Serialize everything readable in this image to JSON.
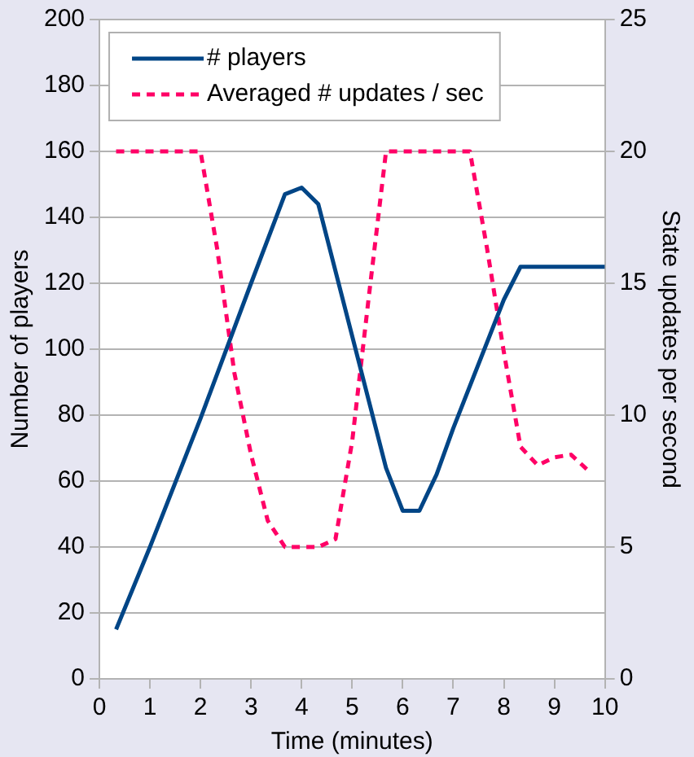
{
  "chart_data": {
    "type": "line",
    "xlabel": "Time (minutes)",
    "ylabel": "Number of players",
    "y2label": "State updates per second",
    "xlim": [
      0,
      10
    ],
    "xticks": [
      0,
      1,
      2,
      3,
      4,
      5,
      6,
      7,
      8,
      9,
      10
    ],
    "ylim": [
      0,
      200
    ],
    "yticks": [
      0,
      20,
      40,
      60,
      80,
      100,
      120,
      140,
      160,
      180,
      200
    ],
    "y2lim": [
      0,
      25
    ],
    "y2ticks": [
      0,
      5,
      10,
      15,
      20,
      25
    ],
    "grid": "y",
    "legend": "top left",
    "marker": "none",
    "series": [
      {
        "name": "# players",
        "color": "#004586",
        "line_style": "solid",
        "x": [
          0.33,
          1,
          2,
          3,
          3.67,
          4,
          4.33,
          5.67,
          6,
          6.33,
          6.67,
          7,
          8,
          8.33,
          10
        ],
        "values": [
          15,
          40,
          79,
          120,
          147,
          149,
          144,
          64,
          51,
          51,
          62,
          76,
          115,
          125,
          125
        ]
      },
      {
        "name": "Averaged # updates / sec",
        "color": "#ff0066",
        "line_style": "dashed",
        "axis": "y2",
        "x": [
          0.33,
          2,
          2.33,
          2.67,
          3,
          3.33,
          3.67,
          4,
          4.33,
          4.67,
          5,
          5.33,
          5.67,
          7.33,
          7.67,
          8,
          8.33,
          8.67,
          9,
          9.33,
          9.67
        ],
        "values": [
          20,
          20,
          16.3,
          11.6,
          8.5,
          6,
          5,
          5,
          5,
          5.3,
          9,
          14.5,
          20,
          20,
          16.3,
          12.4,
          8.8,
          8.1,
          8.4,
          8.5,
          7.9
        ]
      }
    ]
  }
}
